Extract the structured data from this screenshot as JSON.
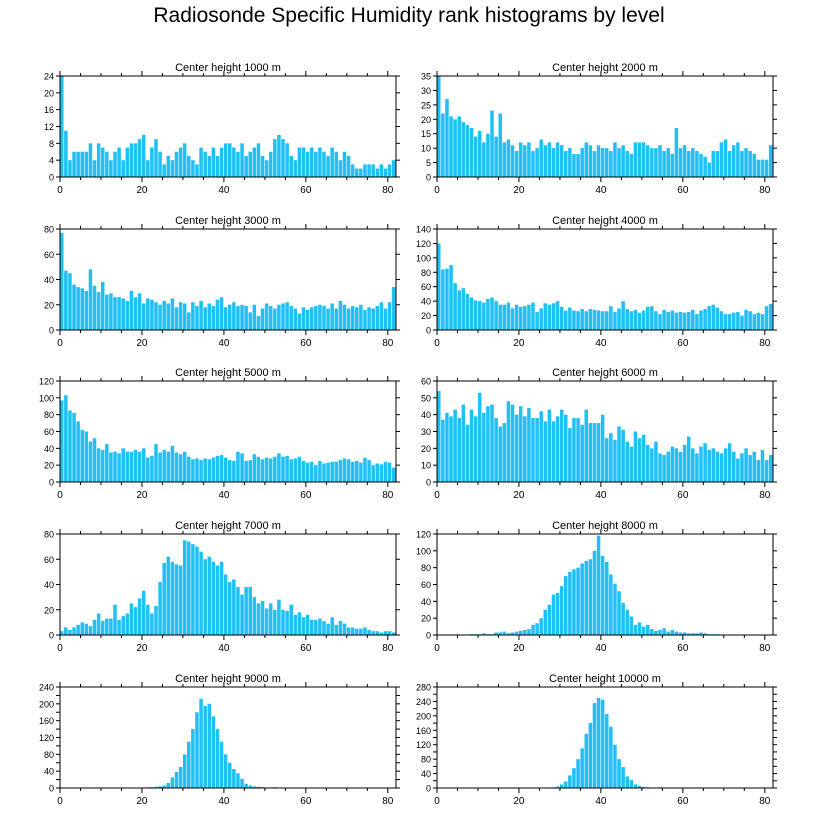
{
  "title": "Radiosonde Specific Humidity rank histograms by level",
  "bar_color": "#1ec0f5",
  "x_ticks": [
    0,
    20,
    40,
    60,
    80
  ],
  "chart_data": [
    {
      "type": "bar",
      "title": "Center height 1000 m",
      "xlim": [
        0,
        82
      ],
      "ylim": [
        0,
        24
      ],
      "yticks": [
        0,
        4,
        8,
        12,
        16,
        20,
        24
      ],
      "values": [
        24,
        11,
        4,
        6,
        6,
        6,
        6,
        8,
        4,
        8,
        7,
        6,
        4,
        6,
        7,
        4,
        7,
        8,
        8,
        9,
        10,
        4,
        7,
        9,
        6,
        3,
        5,
        4,
        6,
        7,
        8,
        5,
        4,
        3,
        7,
        6,
        5,
        7,
        5,
        7,
        8,
        8,
        7,
        6,
        8,
        5,
        6,
        7,
        8,
        5,
        4,
        6,
        9,
        10,
        9,
        8,
        5,
        4,
        7,
        7,
        6,
        7,
        6,
        7,
        6,
        5,
        7,
        6,
        4,
        6,
        5,
        3,
        2,
        2,
        3,
        3,
        3,
        2,
        3,
        2,
        3,
        4
      ]
    },
    {
      "type": "bar",
      "title": "Center height 2000 m",
      "xlim": [
        0,
        82
      ],
      "ylim": [
        0,
        35
      ],
      "yticks": [
        0,
        5,
        10,
        15,
        20,
        25,
        30,
        35
      ],
      "values": [
        35,
        22,
        27,
        21,
        20,
        21,
        19,
        18,
        17,
        14,
        16,
        12,
        15,
        23,
        14,
        22,
        12,
        13,
        11,
        9,
        12,
        11,
        12,
        9,
        10,
        13,
        11,
        12,
        10,
        12,
        11,
        9,
        10,
        8,
        8,
        10,
        12,
        11,
        9,
        11,
        10,
        10,
        9,
        12,
        10,
        11,
        9,
        8,
        12,
        12,
        12,
        11,
        10,
        10,
        11,
        9,
        10,
        8,
        17,
        10,
        11,
        9,
        10,
        9,
        8,
        7,
        5,
        9,
        9,
        12,
        13,
        9,
        11,
        12,
        9,
        10,
        9,
        8,
        6,
        6,
        6,
        11
      ]
    },
    {
      "type": "bar",
      "title": "Center height 3000 m",
      "xlim": [
        0,
        82
      ],
      "ylim": [
        0,
        80
      ],
      "yticks": [
        0,
        20,
        40,
        60,
        80
      ],
      "values": [
        77,
        47,
        45,
        36,
        34,
        33,
        31,
        48,
        35,
        30,
        38,
        28,
        29,
        26,
        26,
        25,
        23,
        31,
        26,
        29,
        21,
        25,
        24,
        22,
        20,
        23,
        21,
        25,
        18,
        22,
        21,
        14,
        22,
        19,
        23,
        18,
        21,
        19,
        24,
        26,
        18,
        20,
        22,
        19,
        20,
        19,
        14,
        20,
        11,
        17,
        21,
        19,
        17,
        20,
        21,
        22,
        19,
        17,
        13,
        18,
        16,
        18,
        19,
        20,
        19,
        17,
        21,
        17,
        23,
        20,
        17,
        19,
        18,
        20,
        16,
        18,
        17,
        19,
        22,
        17,
        22,
        34
      ]
    },
    {
      "type": "bar",
      "title": "Center height 4000 m",
      "xlim": [
        0,
        82
      ],
      "ylim": [
        0,
        140
      ],
      "yticks": [
        0,
        20,
        40,
        60,
        80,
        100,
        120,
        140
      ],
      "values": [
        120,
        84,
        85,
        90,
        65,
        55,
        58,
        50,
        45,
        41,
        40,
        38,
        43,
        45,
        40,
        35,
        35,
        38,
        30,
        35,
        32,
        33,
        35,
        38,
        25,
        30,
        37,
        35,
        37,
        40,
        32,
        27,
        31,
        27,
        26,
        29,
        26,
        29,
        28,
        27,
        26,
        26,
        33,
        25,
        30,
        40,
        29,
        26,
        28,
        24,
        27,
        32,
        33,
        26,
        22,
        28,
        25,
        27,
        24,
        25,
        24,
        25,
        28,
        22,
        27,
        29,
        33,
        35,
        31,
        26,
        22,
        22,
        24,
        25,
        20,
        28,
        26,
        22,
        24,
        22,
        33,
        36
      ]
    },
    {
      "type": "bar",
      "title": "Center height 5000 m",
      "xlim": [
        0,
        82
      ],
      "ylim": [
        0,
        120
      ],
      "yticks": [
        0,
        20,
        40,
        60,
        80,
        100,
        120
      ],
      "values": [
        97,
        103,
        85,
        82,
        72,
        62,
        60,
        48,
        52,
        40,
        38,
        45,
        35,
        36,
        34,
        40,
        36,
        36,
        38,
        36,
        40,
        29,
        31,
        45,
        35,
        38,
        36,
        43,
        35,
        33,
        36,
        30,
        27,
        28,
        26,
        28,
        27,
        29,
        31,
        32,
        29,
        26,
        25,
        36,
        34,
        25,
        26,
        33,
        30,
        27,
        29,
        28,
        30,
        34,
        30,
        31,
        27,
        28,
        30,
        25,
        23,
        24,
        20,
        25,
        22,
        23,
        24,
        24,
        26,
        28,
        27,
        24,
        25,
        23,
        29,
        26,
        20,
        22,
        21,
        24,
        23,
        17
      ]
    },
    {
      "type": "bar",
      "title": "Center height 6000 m",
      "xlim": [
        0,
        82
      ],
      "ylim": [
        0,
        60
      ],
      "yticks": [
        0,
        10,
        20,
        30,
        40,
        50,
        60
      ],
      "values": [
        54,
        37,
        41,
        39,
        43,
        38,
        46,
        34,
        43,
        39,
        53,
        41,
        45,
        46,
        38,
        33,
        35,
        48,
        46,
        40,
        45,
        39,
        44,
        38,
        38,
        42,
        36,
        43,
        36,
        39,
        43,
        40,
        32,
        38,
        38,
        34,
        43,
        35,
        35,
        35,
        40,
        26,
        29,
        25,
        33,
        31,
        24,
        21,
        30,
        26,
        28,
        22,
        20,
        24,
        17,
        16,
        18,
        21,
        20,
        18,
        22,
        27,
        20,
        17,
        21,
        23,
        19,
        20,
        18,
        17,
        20,
        23,
        18,
        14,
        17,
        20,
        16,
        18,
        13,
        19,
        13,
        16
      ]
    },
    {
      "type": "bar",
      "title": "Center height 7000 m",
      "xlim": [
        0,
        82
      ],
      "ylim": [
        0,
        80
      ],
      "yticks": [
        0,
        20,
        40,
        60,
        80
      ],
      "values": [
        3,
        6,
        4,
        6,
        8,
        10,
        9,
        7,
        12,
        17,
        11,
        13,
        13,
        24,
        12,
        15,
        17,
        25,
        22,
        29,
        35,
        24,
        17,
        23,
        42,
        57,
        62,
        58,
        56,
        55,
        75,
        74,
        72,
        70,
        66,
        60,
        62,
        58,
        55,
        58,
        48,
        42,
        44,
        38,
        32,
        38,
        38,
        30,
        25,
        27,
        21,
        25,
        20,
        28,
        20,
        19,
        24,
        16,
        18,
        14,
        16,
        12,
        12,
        13,
        11,
        9,
        14,
        8,
        11,
        9,
        6,
        6,
        5,
        5,
        6,
        4,
        3,
        3,
        2,
        3,
        3,
        2
      ]
    },
    {
      "type": "bar",
      "title": "Center height 8000 m",
      "xlim": [
        0,
        82
      ],
      "ylim": [
        0,
        120
      ],
      "yticks": [
        0,
        20,
        40,
        60,
        80,
        100,
        120
      ],
      "values": [
        0,
        0,
        0,
        0,
        0,
        0,
        0,
        0,
        1,
        1,
        1,
        2,
        1,
        1,
        3,
        3,
        4,
        2,
        3,
        4,
        5,
        6,
        7,
        12,
        14,
        20,
        30,
        36,
        48,
        50,
        58,
        70,
        75,
        78,
        80,
        85,
        88,
        90,
        100,
        118,
        94,
        87,
        72,
        61,
        52,
        38,
        30,
        22,
        12,
        15,
        10,
        12,
        7,
        5,
        6,
        8,
        4,
        6,
        4,
        3,
        3,
        2,
        2,
        2,
        3,
        2,
        1,
        1,
        1,
        0,
        0,
        0,
        0,
        0,
        0,
        0,
        0,
        0,
        0,
        0,
        0,
        0
      ]
    },
    {
      "type": "bar",
      "title": "Center height 9000 m",
      "xlim": [
        0,
        82
      ],
      "ylim": [
        0,
        240
      ],
      "yticks": [
        0,
        20,
        40,
        60,
        80,
        100,
        120,
        140,
        160,
        180,
        200,
        220,
        240
      ],
      "ylabels": [
        "0",
        "",
        "40",
        "",
        "80",
        "",
        "120",
        "",
        "160",
        "",
        "200",
        "",
        "240"
      ],
      "values": [
        0,
        0,
        0,
        0,
        0,
        0,
        0,
        0,
        0,
        0,
        0,
        0,
        0,
        0,
        0,
        0,
        0,
        0,
        1,
        1,
        1,
        2,
        2,
        3,
        4,
        6,
        12,
        25,
        38,
        50,
        80,
        110,
        140,
        180,
        212,
        195,
        200,
        170,
        140,
        110,
        80,
        60,
        45,
        35,
        22,
        10,
        6,
        4,
        3,
        2,
        1,
        1,
        2,
        1,
        0,
        1,
        0,
        0,
        0,
        0,
        0,
        0,
        0,
        0,
        0,
        0,
        0,
        0,
        0,
        0,
        0,
        0,
        0,
        0,
        0,
        0,
        0,
        0,
        0,
        0,
        0,
        0
      ]
    },
    {
      "type": "bar",
      "title": "Center height 10000 m",
      "xlim": [
        0,
        82
      ],
      "ylim": [
        0,
        280
      ],
      "yticks": [
        0,
        20,
        40,
        60,
        80,
        100,
        120,
        140,
        160,
        180,
        200,
        220,
        240,
        260,
        280
      ],
      "ylabels": [
        "0",
        "",
        "40",
        "",
        "80",
        "",
        "120",
        "",
        "160",
        "",
        "200",
        "",
        "240",
        "",
        "280"
      ],
      "values": [
        0,
        0,
        0,
        0,
        0,
        0,
        0,
        0,
        0,
        0,
        0,
        0,
        0,
        0,
        0,
        0,
        0,
        0,
        0,
        0,
        0,
        0,
        0,
        0,
        0,
        0,
        0,
        1,
        2,
        4,
        10,
        18,
        35,
        55,
        80,
        110,
        150,
        180,
        235,
        250,
        245,
        205,
        170,
        120,
        80,
        58,
        32,
        22,
        10,
        6,
        3,
        2,
        1,
        1,
        2,
        1,
        1,
        1,
        1,
        0,
        0,
        0,
        0,
        1,
        0,
        0,
        0,
        0,
        0,
        0,
        0,
        0,
        0,
        0,
        0,
        0,
        0,
        0,
        0,
        0,
        0,
        0
      ]
    }
  ]
}
